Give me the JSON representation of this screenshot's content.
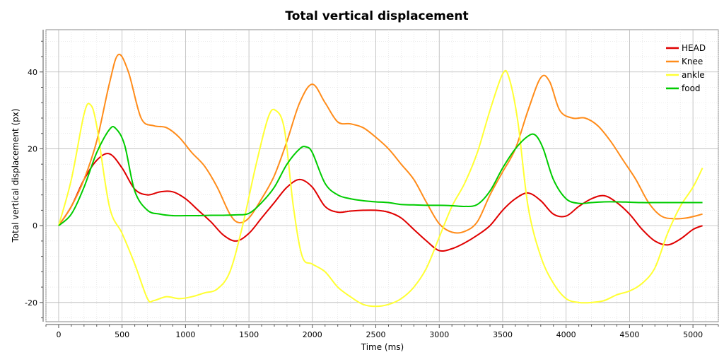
{
  "chart_data": {
    "type": "line",
    "title": "Total vertical displacement",
    "xlabel": "Time (ms)",
    "ylabel": "Total vertical displacement (px)",
    "xlim": [
      -100,
      5200
    ],
    "ylim": [
      -25,
      51
    ],
    "x_ticks": [
      0,
      500,
      1000,
      1500,
      2000,
      2500,
      3000,
      3500,
      4000,
      4500,
      5000
    ],
    "y_ticks": [
      -20,
      0,
      20,
      40
    ],
    "grid": true,
    "legend_position": "top-right",
    "series": [
      {
        "name": "HEAD",
        "color": "#e00000",
        "points": [
          [
            0,
            0
          ],
          [
            100,
            5
          ],
          [
            200,
            12
          ],
          [
            300,
            17
          ],
          [
            400,
            18.7
          ],
          [
            500,
            15
          ],
          [
            600,
            9.5
          ],
          [
            700,
            8
          ],
          [
            800,
            8.8
          ],
          [
            900,
            8.8
          ],
          [
            1000,
            7
          ],
          [
            1100,
            4
          ],
          [
            1200,
            1
          ],
          [
            1300,
            -2.5
          ],
          [
            1400,
            -4
          ],
          [
            1500,
            -2
          ],
          [
            1600,
            2
          ],
          [
            1700,
            6
          ],
          [
            1800,
            10
          ],
          [
            1900,
            12
          ],
          [
            2000,
            10
          ],
          [
            2100,
            5
          ],
          [
            2200,
            3.5
          ],
          [
            2300,
            3.8
          ],
          [
            2400,
            4
          ],
          [
            2500,
            4
          ],
          [
            2600,
            3.5
          ],
          [
            2700,
            2
          ],
          [
            2800,
            -1
          ],
          [
            2900,
            -4
          ],
          [
            3000,
            -6.5
          ],
          [
            3100,
            -6
          ],
          [
            3200,
            -4.5
          ],
          [
            3300,
            -2.5
          ],
          [
            3400,
            0
          ],
          [
            3500,
            4
          ],
          [
            3600,
            7
          ],
          [
            3700,
            8.5
          ],
          [
            3800,
            6.5
          ],
          [
            3900,
            3
          ],
          [
            4000,
            2.5
          ],
          [
            4100,
            5
          ],
          [
            4200,
            7
          ],
          [
            4300,
            7.8
          ],
          [
            4400,
            6
          ],
          [
            4500,
            3
          ],
          [
            4600,
            -1
          ],
          [
            4700,
            -4
          ],
          [
            4800,
            -5
          ],
          [
            4900,
            -3.5
          ],
          [
            5000,
            -1
          ],
          [
            5075,
            0
          ]
        ]
      },
      {
        "name": "Knee",
        "color": "#ff8c1a",
        "points": [
          [
            0,
            0
          ],
          [
            100,
            5
          ],
          [
            200,
            12
          ],
          [
            300,
            22
          ],
          [
            400,
            37
          ],
          [
            470,
            44.5
          ],
          [
            550,
            40
          ],
          [
            650,
            28
          ],
          [
            750,
            26
          ],
          [
            850,
            25.5
          ],
          [
            950,
            23
          ],
          [
            1050,
            19
          ],
          [
            1150,
            15.5
          ],
          [
            1250,
            10
          ],
          [
            1350,
            3
          ],
          [
            1420,
            0.8
          ],
          [
            1500,
            2
          ],
          [
            1600,
            7
          ],
          [
            1700,
            13
          ],
          [
            1800,
            22
          ],
          [
            1900,
            32
          ],
          [
            2000,
            36.8
          ],
          [
            2100,
            32
          ],
          [
            2200,
            27
          ],
          [
            2300,
            26.5
          ],
          [
            2400,
            25.5
          ],
          [
            2500,
            23
          ],
          [
            2600,
            20
          ],
          [
            2700,
            16
          ],
          [
            2800,
            12
          ],
          [
            2900,
            6
          ],
          [
            3000,
            0.5
          ],
          [
            3100,
            -1.7
          ],
          [
            3200,
            -1.5
          ],
          [
            3300,
            1
          ],
          [
            3400,
            8
          ],
          [
            3500,
            14
          ],
          [
            3600,
            20
          ],
          [
            3700,
            30
          ],
          [
            3800,
            38.5
          ],
          [
            3870,
            37.5
          ],
          [
            3950,
            30
          ],
          [
            4050,
            28
          ],
          [
            4150,
            28
          ],
          [
            4250,
            26
          ],
          [
            4350,
            22
          ],
          [
            4450,
            17
          ],
          [
            4550,
            12
          ],
          [
            4650,
            6
          ],
          [
            4750,
            2.5
          ],
          [
            4850,
            1.8
          ],
          [
            4950,
            2
          ],
          [
            5075,
            3
          ]
        ]
      },
      {
        "name": "ankle",
        "color": "#ffff33",
        "points": [
          [
            0,
            0
          ],
          [
            100,
            12
          ],
          [
            200,
            29
          ],
          [
            250,
            31.5
          ],
          [
            300,
            26
          ],
          [
            400,
            5
          ],
          [
            500,
            -2
          ],
          [
            600,
            -10
          ],
          [
            700,
            -19
          ],
          [
            750,
            -19.5
          ],
          [
            850,
            -18.5
          ],
          [
            950,
            -19
          ],
          [
            1050,
            -18.5
          ],
          [
            1150,
            -17.5
          ],
          [
            1250,
            -16.5
          ],
          [
            1350,
            -12
          ],
          [
            1450,
            0
          ],
          [
            1550,
            15
          ],
          [
            1650,
            28
          ],
          [
            1710,
            30
          ],
          [
            1780,
            25
          ],
          [
            1850,
            5
          ],
          [
            1920,
            -8
          ],
          [
            2000,
            -10
          ],
          [
            2100,
            -12
          ],
          [
            2200,
            -16
          ],
          [
            2300,
            -18.5
          ],
          [
            2400,
            -20.5
          ],
          [
            2500,
            -21
          ],
          [
            2600,
            -20.5
          ],
          [
            2700,
            -19
          ],
          [
            2800,
            -16
          ],
          [
            2900,
            -11
          ],
          [
            3000,
            -3
          ],
          [
            3100,
            5
          ],
          [
            3200,
            11
          ],
          [
            3300,
            19
          ],
          [
            3400,
            30
          ],
          [
            3500,
            39.5
          ],
          [
            3550,
            38.5
          ],
          [
            3620,
            27
          ],
          [
            3700,
            5
          ],
          [
            3800,
            -8
          ],
          [
            3900,
            -15
          ],
          [
            4000,
            -19
          ],
          [
            4100,
            -20
          ],
          [
            4200,
            -20
          ],
          [
            4300,
            -19.5
          ],
          [
            4400,
            -18
          ],
          [
            4500,
            -17
          ],
          [
            4600,
            -15
          ],
          [
            4700,
            -11
          ],
          [
            4800,
            -2
          ],
          [
            4900,
            5
          ],
          [
            5000,
            10
          ],
          [
            5075,
            15
          ]
        ]
      },
      {
        "name": "food",
        "color": "#00cc00",
        "points": [
          [
            0,
            0
          ],
          [
            100,
            3
          ],
          [
            200,
            10
          ],
          [
            300,
            19
          ],
          [
            400,
            25
          ],
          [
            450,
            25.3
          ],
          [
            520,
            21
          ],
          [
            600,
            9
          ],
          [
            700,
            4
          ],
          [
            800,
            3
          ],
          [
            900,
            2.6
          ],
          [
            1000,
            2.6
          ],
          [
            1100,
            2.6
          ],
          [
            1200,
            2.7
          ],
          [
            1300,
            2.7
          ],
          [
            1400,
            2.8
          ],
          [
            1500,
            3.2
          ],
          [
            1600,
            6
          ],
          [
            1700,
            10
          ],
          [
            1800,
            16
          ],
          [
            1900,
            20
          ],
          [
            1950,
            20.5
          ],
          [
            2000,
            19
          ],
          [
            2100,
            11
          ],
          [
            2200,
            8
          ],
          [
            2300,
            7
          ],
          [
            2400,
            6.5
          ],
          [
            2500,
            6.2
          ],
          [
            2600,
            6
          ],
          [
            2700,
            5.5
          ],
          [
            2800,
            5.4
          ],
          [
            2900,
            5.3
          ],
          [
            3000,
            5.3
          ],
          [
            3100,
            5.2
          ],
          [
            3200,
            5
          ],
          [
            3300,
            5.5
          ],
          [
            3400,
            9
          ],
          [
            3500,
            15
          ],
          [
            3600,
            20
          ],
          [
            3700,
            23.3
          ],
          [
            3760,
            23.5
          ],
          [
            3820,
            20
          ],
          [
            3900,
            12
          ],
          [
            4000,
            7
          ],
          [
            4100,
            5.8
          ],
          [
            4200,
            6
          ],
          [
            4300,
            6.2
          ],
          [
            4400,
            6.2
          ],
          [
            4500,
            6.1
          ],
          [
            4600,
            6
          ],
          [
            4700,
            6
          ],
          [
            4800,
            6
          ],
          [
            4900,
            6
          ],
          [
            5000,
            6
          ],
          [
            5075,
            6
          ]
        ]
      }
    ]
  }
}
